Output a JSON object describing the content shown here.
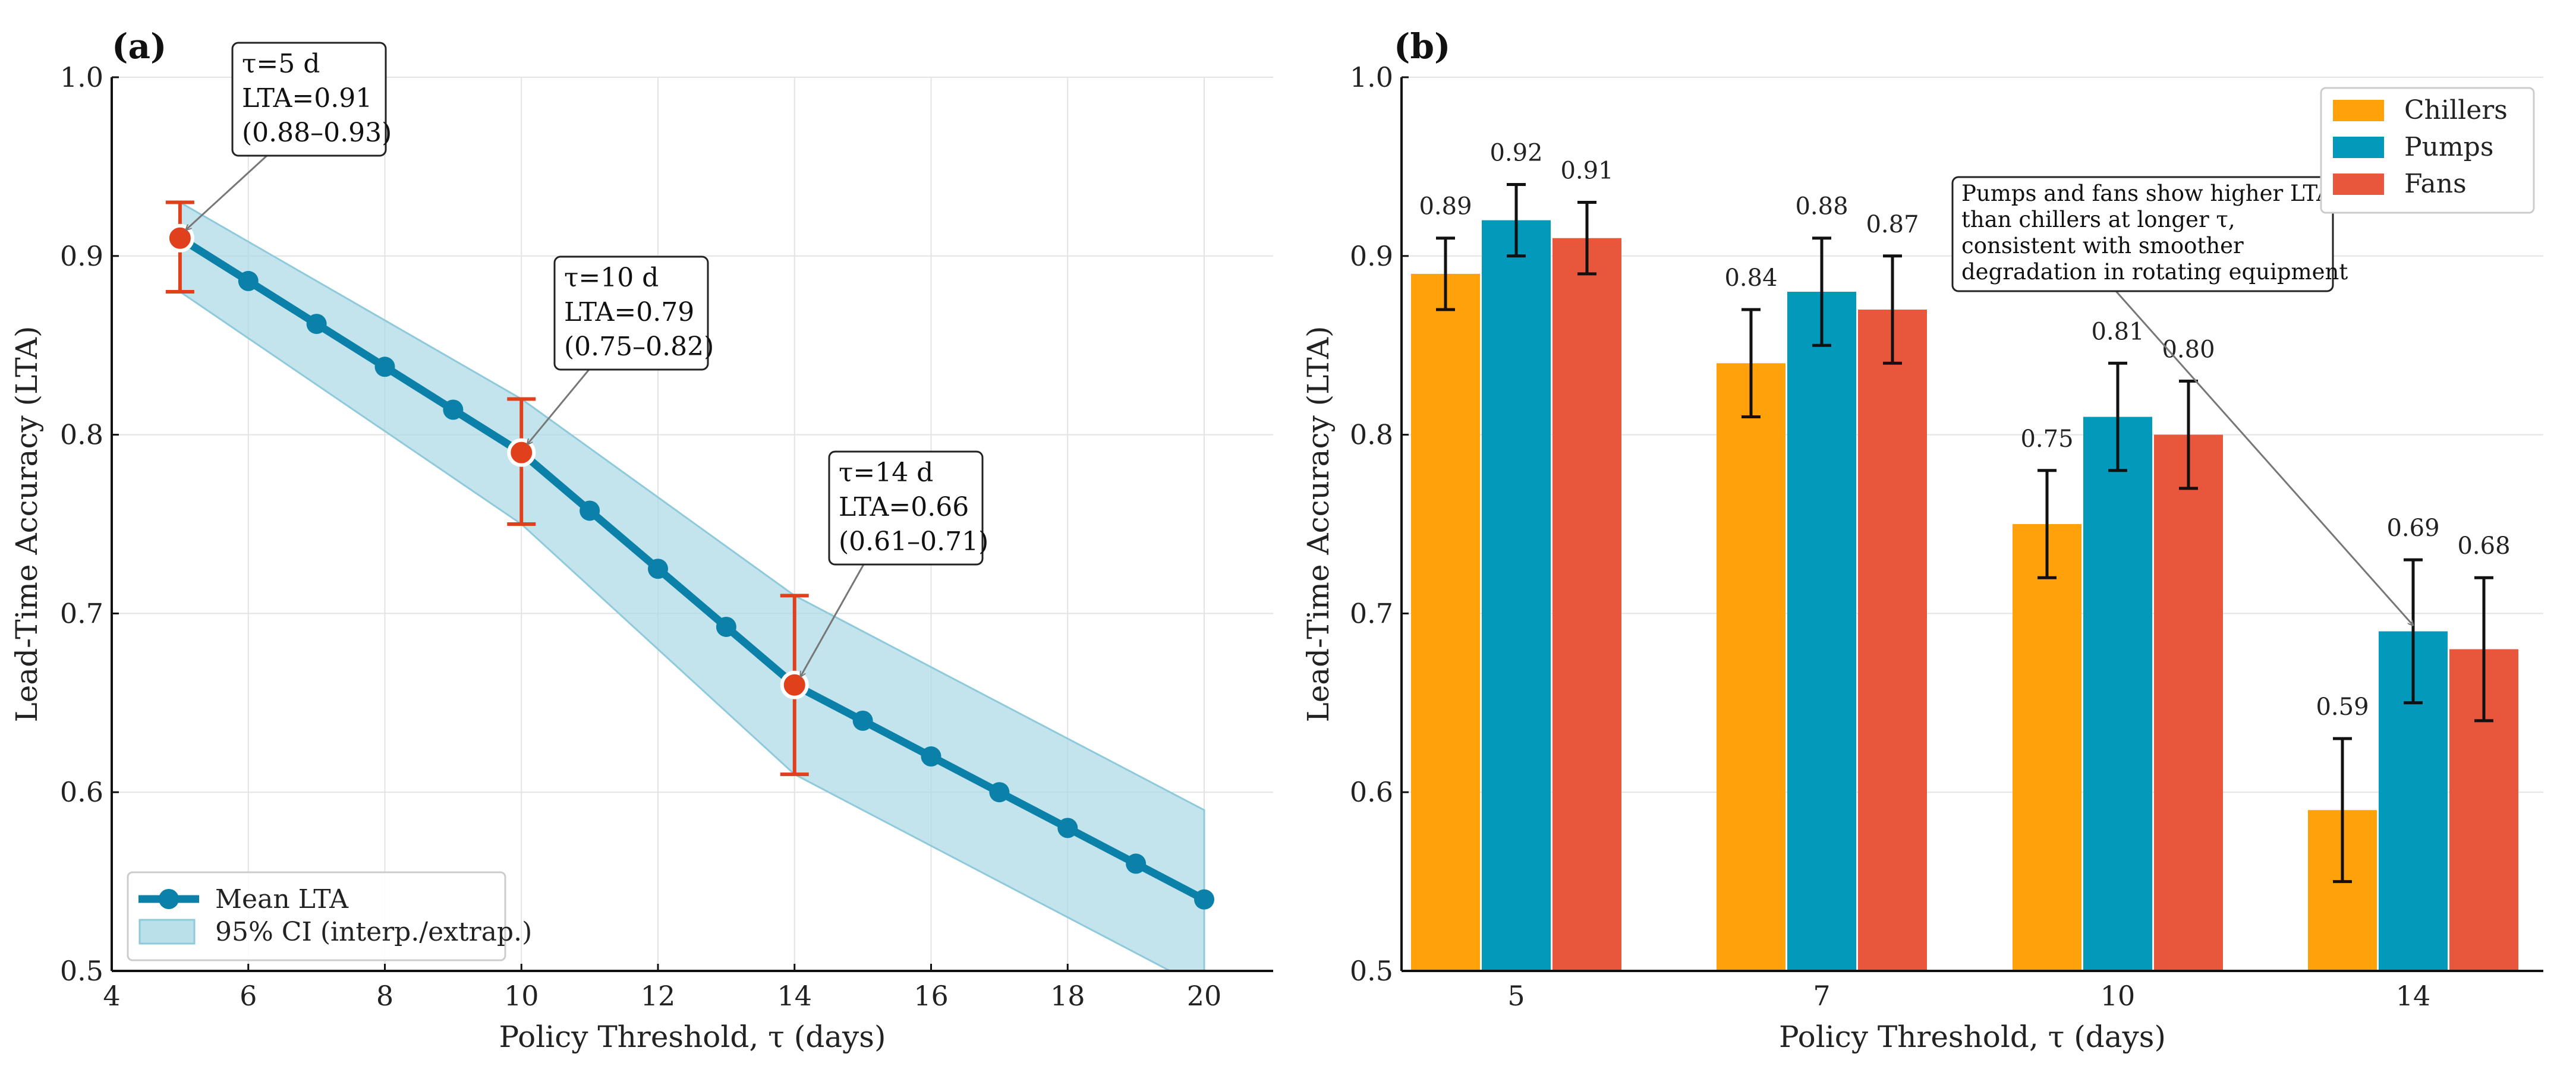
{
  "chart_data": [
    {
      "type": "line",
      "panel_label": "(a)",
      "xlabel": "Policy Threshold, τ (days)",
      "ylabel": "Lead-Time Accuracy (LTA)",
      "xlim": [
        4,
        21
      ],
      "ylim": [
        0.5,
        1.0
      ],
      "xticks": [
        4,
        6,
        8,
        10,
        12,
        14,
        16,
        18,
        20
      ],
      "yticks": [
        0.5,
        0.6,
        0.7,
        0.8,
        0.9,
        1.0
      ],
      "grid": true,
      "legend_placement": "lower-left",
      "series": [
        {
          "name": "Mean LTA",
          "color": "#0b80a8",
          "x": [
            5,
            6,
            7,
            8,
            9,
            10,
            11,
            12,
            13,
            14,
            15,
            16,
            17,
            18,
            19,
            20
          ],
          "y": [
            0.91,
            0.886,
            0.862,
            0.838,
            0.814,
            0.79,
            0.7575,
            0.725,
            0.6925,
            0.66,
            0.64,
            0.62,
            0.6,
            0.58,
            0.56,
            0.54
          ]
        },
        {
          "name": "95% CI (interp./extrap.)",
          "color": "#a9d8e5",
          "type": "band",
          "x": [
            5,
            10,
            14,
            20
          ],
          "lower": [
            0.88,
            0.75,
            0.61,
            0.49
          ],
          "upper": [
            0.93,
            0.82,
            0.71,
            0.59
          ]
        }
      ],
      "highlighted": [
        {
          "x": 5,
          "y": 0.91,
          "lo": 0.88,
          "hi": 0.93,
          "lines": [
            "τ=5 d",
            "LTA=0.91",
            "(0.88–0.93)"
          ]
        },
        {
          "x": 10,
          "y": 0.79,
          "lo": 0.75,
          "hi": 0.82,
          "lines": [
            "τ=10 d",
            "LTA=0.79",
            "(0.75–0.82)"
          ]
        },
        {
          "x": 14,
          "y": 0.66,
          "lo": 0.61,
          "hi": 0.71,
          "lines": [
            "τ=14 d",
            "LTA=0.66",
            "(0.61–0.71)"
          ]
        }
      ],
      "highlight_color": "#e0401c"
    },
    {
      "type": "bar",
      "panel_label": "(b)",
      "xlabel": "Policy Threshold, τ (days)",
      "ylabel": "Lead-Time Accuracy (LTA)",
      "categories": [
        "5",
        "7",
        "10",
        "14"
      ],
      "ylim": [
        0.5,
        1.0
      ],
      "yticks": [
        0.5,
        0.6,
        0.7,
        0.8,
        0.9,
        1.0
      ],
      "grid": true,
      "legend_placement": "top-right",
      "series": [
        {
          "name": "Chillers",
          "color": "#FFA10A",
          "values": [
            0.89,
            0.84,
            0.75,
            0.59
          ],
          "lo": [
            0.87,
            0.81,
            0.72,
            0.55
          ],
          "hi": [
            0.91,
            0.87,
            0.78,
            0.63
          ],
          "labels": [
            "0.89",
            "0.84",
            "0.75",
            "0.59"
          ]
        },
        {
          "name": "Pumps",
          "color": "#0399BA",
          "values": [
            0.92,
            0.88,
            0.81,
            0.69
          ],
          "lo": [
            0.9,
            0.85,
            0.78,
            0.65
          ],
          "hi": [
            0.94,
            0.91,
            0.84,
            0.73
          ],
          "labels": [
            "0.92",
            "0.88",
            "0.81",
            "0.69"
          ]
        },
        {
          "name": "Fans",
          "color": "#E8563B",
          "values": [
            0.91,
            0.87,
            0.8,
            0.68
          ],
          "lo": [
            0.89,
            0.84,
            0.77,
            0.64
          ],
          "hi": [
            0.93,
            0.9,
            0.83,
            0.72
          ],
          "labels": [
            "0.91",
            "0.87",
            "0.80",
            "0.68"
          ]
        }
      ],
      "annotation": {
        "lines": [
          "Pumps and fans show higher LTA",
          "than chillers at longer τ,",
          "consistent with smoother",
          "degradation in rotating equipment"
        ],
        "target_category": "14",
        "target_series": "Pumps",
        "target_value": 0.69
      }
    }
  ]
}
